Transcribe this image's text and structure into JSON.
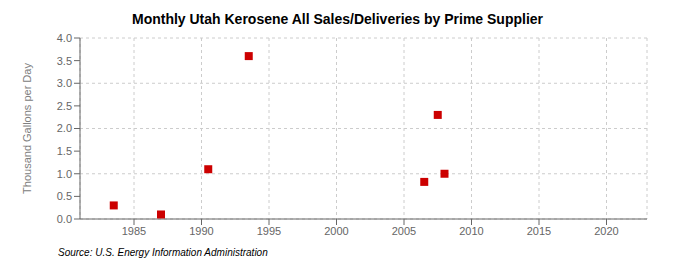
{
  "chart_data": {
    "type": "scatter",
    "title": "Monthly Utah Kerosene All Sales/Deliveries by Prime Supplier",
    "ylabel": "Thousand Gallons per Day",
    "annotation": "Source: U.S. Energy Information Administration",
    "x": [
      1983.5,
      1987.0,
      1990.5,
      1993.5,
      2006.5,
      2007.5,
      2008.0
    ],
    "values": [
      0.3,
      0.1,
      1.1,
      3.6,
      0.82,
      2.3,
      1.0
    ],
    "color": "#cc0000",
    "marker": "square",
    "xlim": [
      1981,
      2023
    ],
    "ylim": [
      0.0,
      4.0
    ],
    "xticks": [
      1985,
      1990,
      1995,
      2000,
      2005,
      2010,
      2015,
      2020
    ],
    "yticks": [
      {
        "value": 0,
        "label": "0.0"
      },
      0.5,
      {
        "value": 1,
        "label": "1.0"
      },
      1.5,
      {
        "value": 2,
        "label": "2.0"
      },
      2.5,
      {
        "value": 3,
        "label": "3.0"
      },
      3.5,
      {
        "value": 4,
        "label": "4.0"
      }
    ],
    "grid": true
  }
}
